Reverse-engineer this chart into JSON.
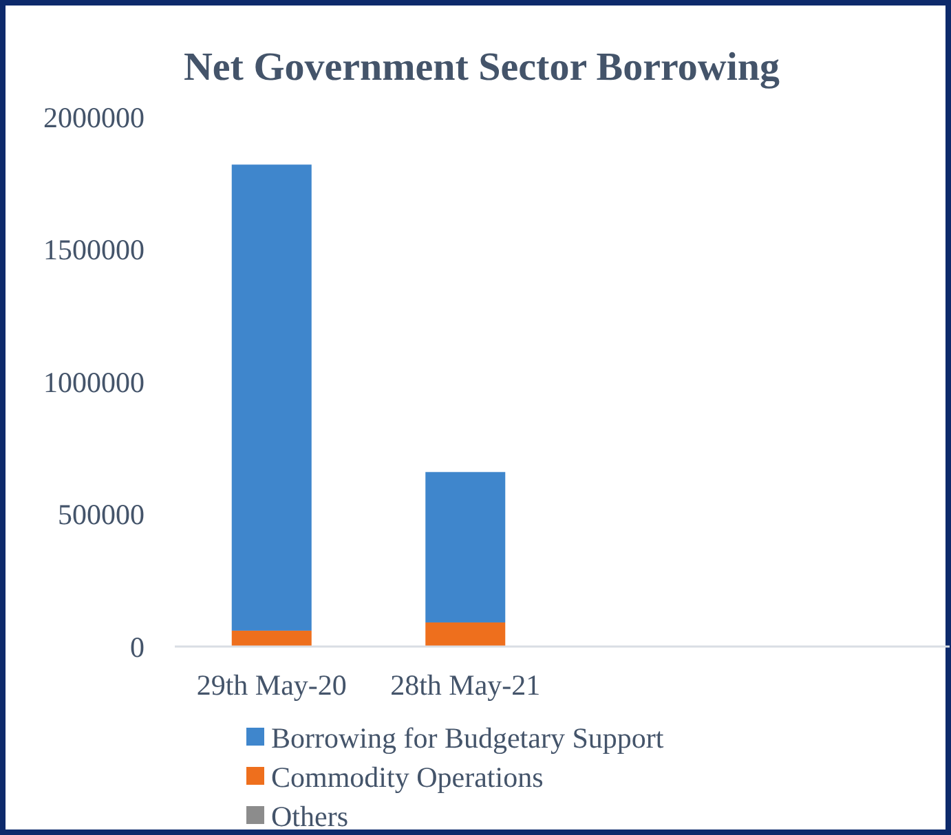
{
  "chart_data": {
    "type": "bar",
    "title": "Net Government Sector Borrowing",
    "stacked": true,
    "categories": [
      "29th May-20",
      "28th May-21",
      null,
      null
    ],
    "series": [
      {
        "name": "Others",
        "color": "#8c8c8c",
        "values": [
          0,
          0,
          null,
          null
        ]
      },
      {
        "name": "Commodity Operations",
        "color": "#ee6f1d",
        "values": [
          60000,
          91000,
          null,
          null
        ]
      },
      {
        "name": "Borrowing for Budgetary Support",
        "color": "#3f86cc",
        "values": [
          1760000,
          568000,
          null,
          null
        ]
      }
    ],
    "ylim": [
      0,
      2000000
    ],
    "yticks": [
      0,
      500000,
      1000000,
      1500000,
      2000000
    ],
    "grid": false,
    "legend": "bottom"
  }
}
